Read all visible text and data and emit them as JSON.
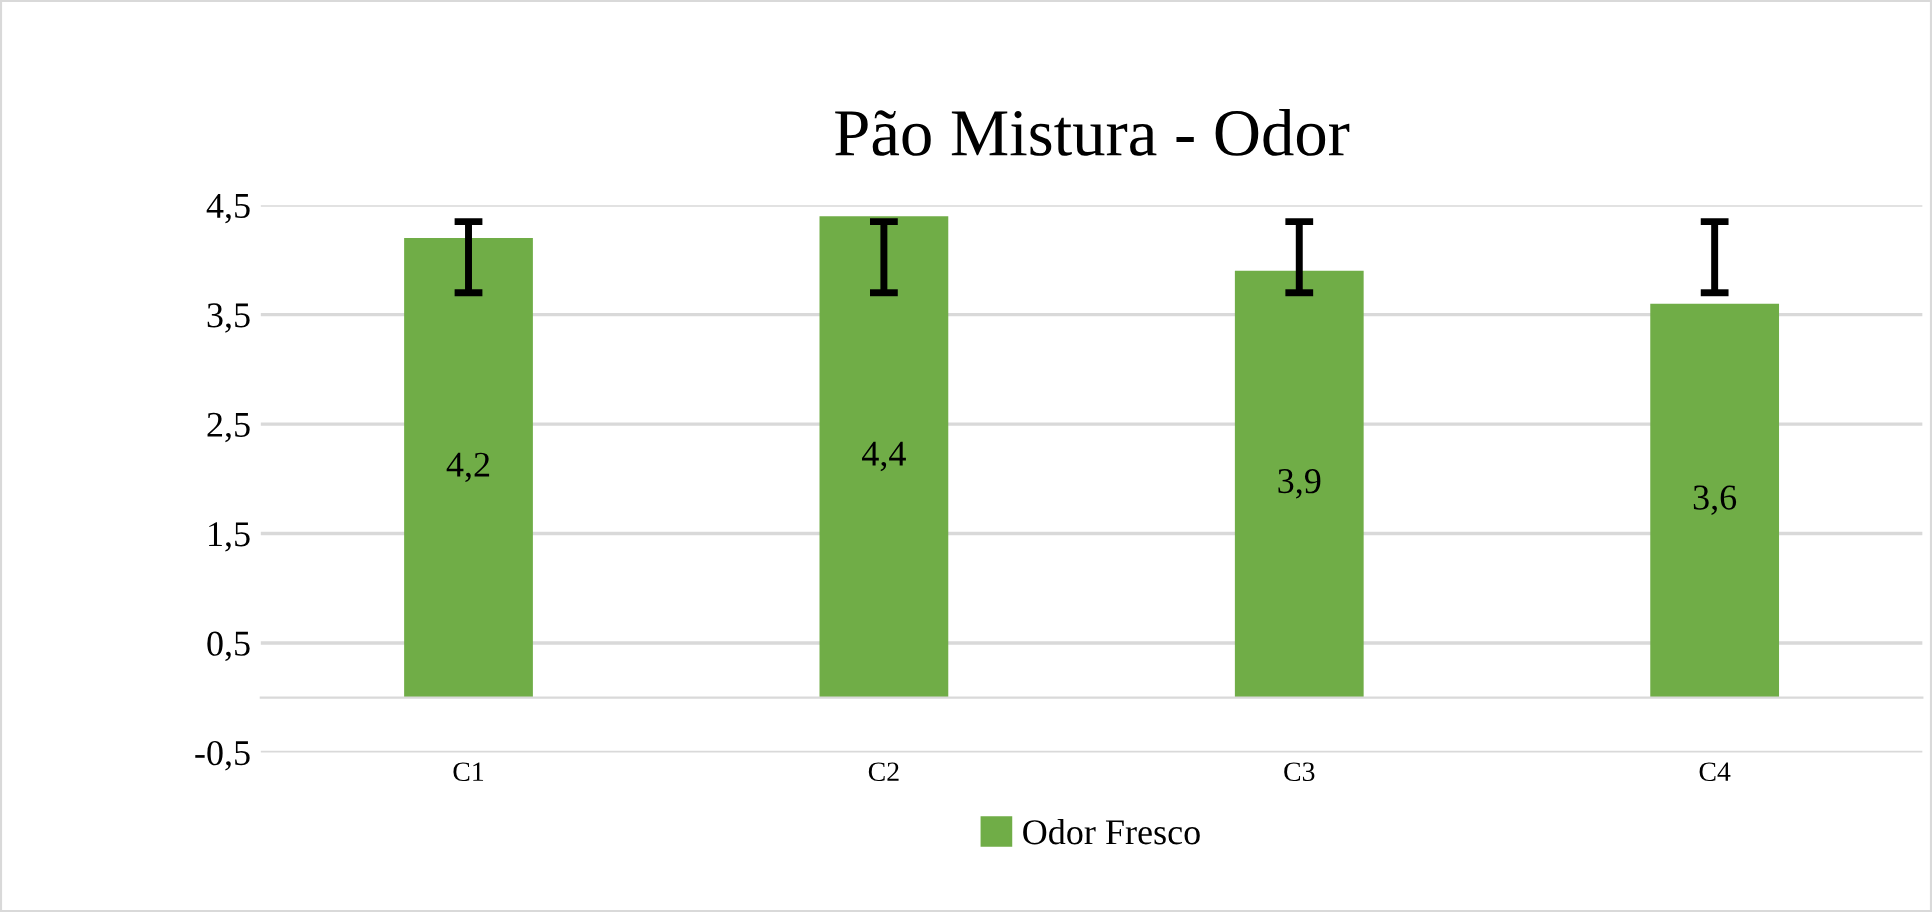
{
  "chart_data": {
    "type": "bar",
    "title": "Pão Mistura - Odor",
    "categories": [
      "C1",
      "C2",
      "C3",
      "C4"
    ],
    "series": [
      {
        "name": "Odor Fresco",
        "color": "#70ad47",
        "values": [
          4.2,
          4.4,
          3.9,
          3.6
        ],
        "value_labels": [
          "4,2",
          "4,4",
          "3,9",
          "3,6"
        ],
        "errors": [
          [
            3.7,
            4.35
          ],
          [
            3.7,
            4.35
          ],
          [
            3.7,
            4.35
          ],
          [
            3.7,
            4.35
          ]
        ]
      }
    ],
    "ylim": [
      -0.5,
      4.5
    ],
    "yticks": [
      {
        "value": -0.5,
        "label": "-0,5"
      },
      {
        "value": 0.5,
        "label": "0,5"
      },
      {
        "value": 1.5,
        "label": "1,5"
      },
      {
        "value": 2.5,
        "label": "2,5"
      },
      {
        "value": 3.5,
        "label": "3,5"
      },
      {
        "value": 4.5,
        "label": "4,5"
      }
    ],
    "grid": "y",
    "legend": "bottom"
  }
}
